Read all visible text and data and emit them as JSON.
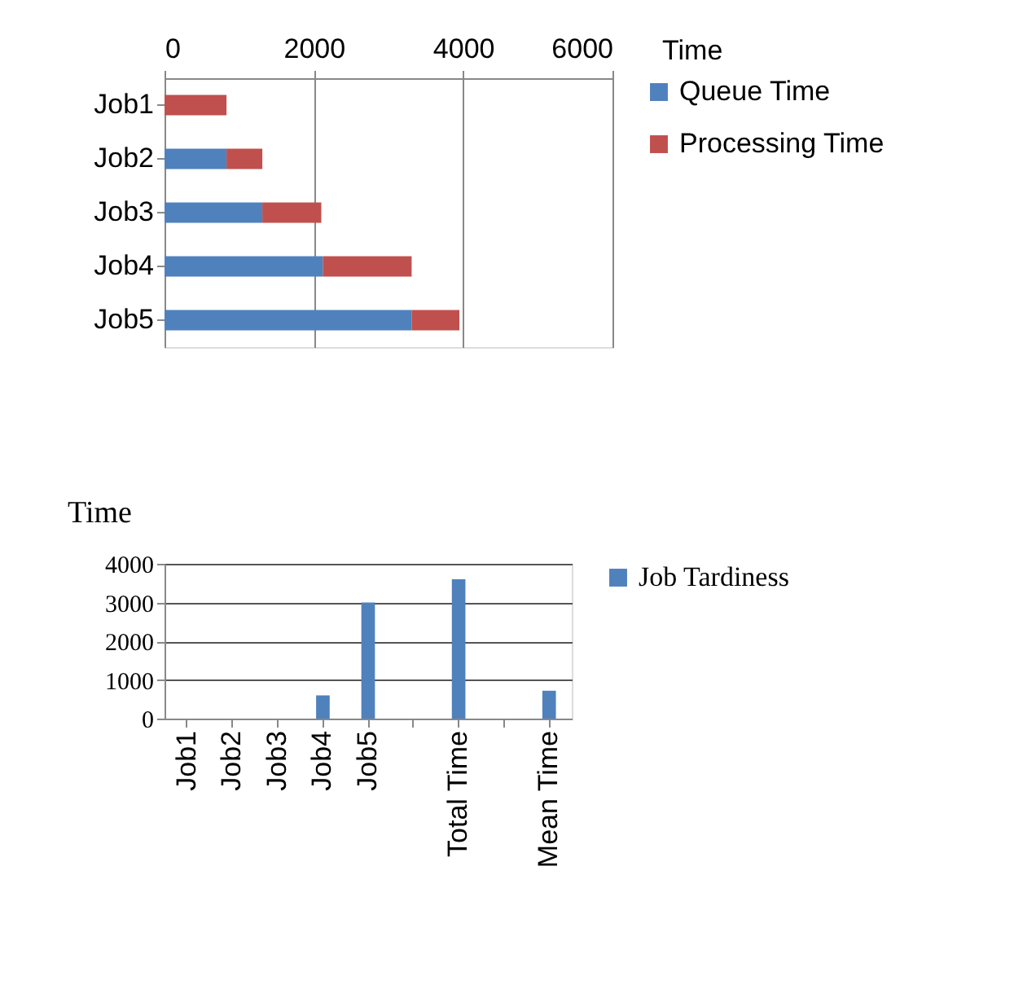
{
  "chart_data": [
    {
      "type": "bar",
      "orientation": "horizontal",
      "stacked": true,
      "categories": [
        "Job1",
        "Job2",
        "Job3",
        "Job4",
        "Job5"
      ],
      "xlabel": "Time",
      "xlim": [
        0,
        6000
      ],
      "xticks": [
        0,
        2000,
        4000,
        6000
      ],
      "grid": "x",
      "legend": "right",
      "series": [
        {
          "name": "Queue Time",
          "color": "#4f81bd",
          "values": [
            0,
            830,
            1310,
            2120,
            3310
          ]
        },
        {
          "name": "Processing Time",
          "color": "#c0504d",
          "values": [
            830,
            480,
            790,
            1190,
            640
          ]
        }
      ]
    },
    {
      "type": "bar",
      "categories": [
        "Job1",
        "Job2",
        "Job3",
        "Job4",
        "Job5",
        null,
        "Total Time",
        null,
        "Mean Time"
      ],
      "ylabel": "Time",
      "ylim": [
        0,
        4000
      ],
      "yticks": [
        0,
        1000,
        2000,
        3000,
        4000
      ],
      "grid": "y",
      "legend": "right",
      "series": [
        {
          "name": "Job Tardiness",
          "color": "#4f81bd",
          "values": [
            0,
            0,
            0,
            600,
            3000,
            null,
            3600,
            null,
            720
          ]
        }
      ]
    }
  ]
}
